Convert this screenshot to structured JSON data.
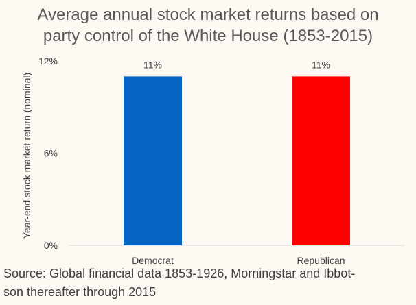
{
  "chart_data": {
    "type": "bar",
    "title_lines": [
      "Average annual stock market returns based on",
      "party control of the White House (1853-2015)"
    ],
    "ylabel": "Year-end stock market return (nominal)",
    "xlabel": "",
    "categories": [
      "Democrat",
      "Republican"
    ],
    "values": [
      11,
      11
    ],
    "data_labels": [
      "11%",
      "11%"
    ],
    "bar_colors": [
      "#0563c1",
      "#ff0000"
    ],
    "ylim": [
      0,
      12
    ],
    "yticks": [
      0,
      6,
      12
    ],
    "ytick_labels": [
      "0%",
      "6%",
      "12%"
    ],
    "grid": false,
    "legend": "none"
  },
  "source_lines": [
    "Source: Global financial data 1853-1926, Morningstar and Ibbot-",
    "son thereafter through 2015"
  ]
}
